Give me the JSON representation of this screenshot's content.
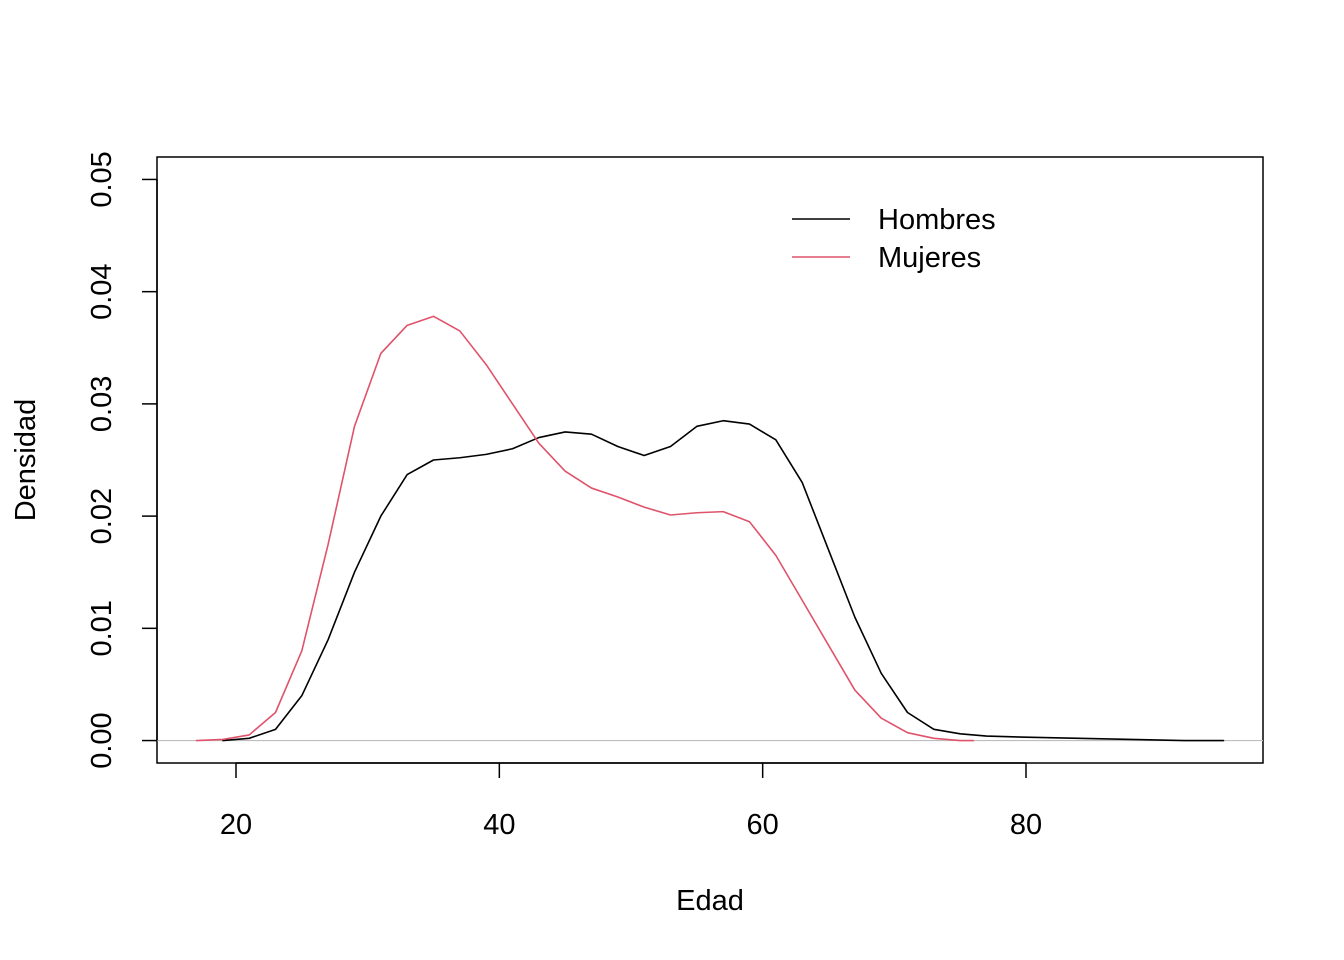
{
  "chart_data": {
    "type": "line",
    "title": "",
    "xlabel": "Edad",
    "ylabel": "Densidad",
    "xlim": [
      14,
      98
    ],
    "ylim": [
      -0.002,
      0.052
    ],
    "x_ticks": [
      20,
      40,
      60,
      80
    ],
    "x_tick_labels": [
      "20",
      "40",
      "60",
      "80"
    ],
    "y_ticks": [
      0.0,
      0.01,
      0.02,
      0.03,
      0.04,
      0.05
    ],
    "y_tick_labels": [
      "0.00",
      "0.01",
      "0.02",
      "0.03",
      "0.04",
      "0.05"
    ],
    "grid": false,
    "zero_reference_line": true,
    "zero_line_color": "#bebebe",
    "legend": {
      "position": "top-right",
      "entries": [
        {
          "label": "Hombres",
          "color": "#000000"
        },
        {
          "label": "Mujeres",
          "color": "#df536b"
        }
      ]
    },
    "series": [
      {
        "name": "Hombres",
        "color": "#000000",
        "points": [
          [
            19,
            0.0
          ],
          [
            21,
            0.0002
          ],
          [
            23,
            0.001
          ],
          [
            25,
            0.004
          ],
          [
            27,
            0.009
          ],
          [
            29,
            0.015
          ],
          [
            31,
            0.02
          ],
          [
            33,
            0.0237
          ],
          [
            35,
            0.025
          ],
          [
            37,
            0.0252
          ],
          [
            39,
            0.0255
          ],
          [
            41,
            0.026
          ],
          [
            43,
            0.027
          ],
          [
            45,
            0.0275
          ],
          [
            47,
            0.0273
          ],
          [
            49,
            0.0262
          ],
          [
            51,
            0.0254
          ],
          [
            53,
            0.0262
          ],
          [
            55,
            0.028
          ],
          [
            57,
            0.0285
          ],
          [
            59,
            0.0282
          ],
          [
            61,
            0.0268
          ],
          [
            63,
            0.023
          ],
          [
            65,
            0.017
          ],
          [
            67,
            0.011
          ],
          [
            69,
            0.006
          ],
          [
            71,
            0.0025
          ],
          [
            73,
            0.001
          ],
          [
            75,
            0.0006
          ],
          [
            77,
            0.0004
          ],
          [
            80,
            0.0003
          ],
          [
            84,
            0.0002
          ],
          [
            88,
            0.0001
          ],
          [
            92,
            0.0
          ],
          [
            95,
            0.0
          ]
        ]
      },
      {
        "name": "Mujeres",
        "color": "#df536b",
        "points": [
          [
            17,
            0.0
          ],
          [
            19,
            0.0001
          ],
          [
            21,
            0.0005
          ],
          [
            23,
            0.0025
          ],
          [
            25,
            0.008
          ],
          [
            27,
            0.0175
          ],
          [
            29,
            0.028
          ],
          [
            31,
            0.0345
          ],
          [
            33,
            0.037
          ],
          [
            35,
            0.0378
          ],
          [
            37,
            0.0365
          ],
          [
            39,
            0.0335
          ],
          [
            41,
            0.03
          ],
          [
            43,
            0.0265
          ],
          [
            45,
            0.024
          ],
          [
            47,
            0.0225
          ],
          [
            49,
            0.0217
          ],
          [
            51,
            0.0208
          ],
          [
            53,
            0.0201
          ],
          [
            55,
            0.0203
          ],
          [
            57,
            0.0204
          ],
          [
            59,
            0.0195
          ],
          [
            61,
            0.0165
          ],
          [
            63,
            0.0125
          ],
          [
            65,
            0.0085
          ],
          [
            67,
            0.0045
          ],
          [
            69,
            0.002
          ],
          [
            71,
            0.0007
          ],
          [
            73,
            0.0002
          ],
          [
            75,
            0.0
          ],
          [
            76,
            0.0
          ]
        ]
      }
    ]
  }
}
